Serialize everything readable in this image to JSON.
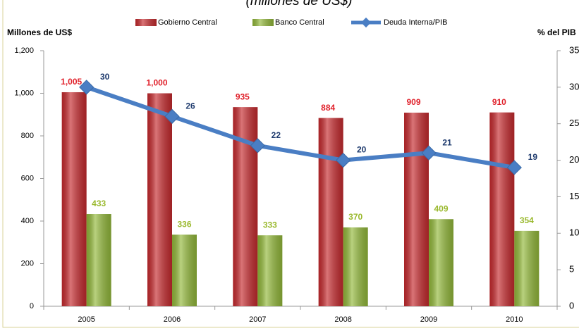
{
  "chart_data": {
    "type": "bar_line",
    "title": "(millones de US$)",
    "y_label": "Millones de US$",
    "y2_label": "% del PIB",
    "categories": [
      "2005",
      "2006",
      "2007",
      "2008",
      "2009",
      "2010"
    ],
    "series": [
      {
        "name": "Gobierno Central",
        "color": "#c62a2e",
        "type": "bar",
        "values": [
          1005,
          1000,
          935,
          884,
          909,
          910
        ],
        "value_labels": [
          "1,005",
          "1,000",
          "935",
          "884",
          "909",
          "910"
        ],
        "label_color": "#e0202a"
      },
      {
        "name": "Banco Central",
        "color": "#93b93a",
        "type": "bar",
        "values": [
          433,
          336,
          333,
          370,
          409,
          354
        ],
        "label_color": "#9ab92e"
      },
      {
        "name": "Deuda Interna/PIB",
        "color": "#4a7ec4",
        "type": "line",
        "axis": "y2",
        "values": [
          30,
          26,
          22,
          20,
          21,
          19
        ],
        "label_color": "#1f3b6e"
      }
    ],
    "ylim": [
      0,
      1200
    ],
    "yticks": [
      0,
      200,
      400,
      600,
      800,
      {
        "value": 1000,
        "label": "1,000"
      },
      {
        "value": 1200,
        "label": "1,200"
      }
    ],
    "y2lim": [
      0,
      35
    ],
    "y2ticks": [
      0,
      5,
      10,
      15,
      20,
      25,
      30,
      35
    ],
    "grid": false
  }
}
